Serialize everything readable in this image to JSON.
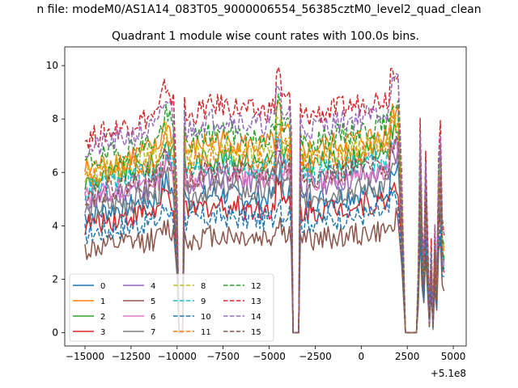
{
  "figure": {
    "suptitle": "n file: modeM0/AS1A14_083T05_9000006554_56385cztM0_level2_quad_clean",
    "title": "Quadrant 1 module wise count rates with 100.0s bins."
  },
  "chart_data": {
    "type": "line",
    "title": "Quadrant 1 module wise count rates with 100.0s bins.",
    "xlabel": "",
    "ylabel": "",
    "x_offset_label": "+5.1e8",
    "x_offset": 510000000,
    "xlim": [
      -16100,
      5700
    ],
    "ylim": [
      -0.5,
      10.7
    ],
    "xticks": [
      -15000,
      -12500,
      -10000,
      -7500,
      -5000,
      -2500,
      0,
      2500,
      5000
    ],
    "xtick_labels": [
      "−15000",
      "−12500",
      "−10000",
      "−7500",
      "−5000",
      "−2500",
      "0",
      "2500",
      "5000"
    ],
    "yticks": [
      0,
      2,
      4,
      6,
      8,
      10
    ],
    "ytick_labels": [
      "0",
      "2",
      "4",
      "6",
      "8",
      "10"
    ],
    "grid": false,
    "legend_placement": "lower-left",
    "legend_ncol": 4,
    "segments": [
      {
        "x": [
          -15000,
          -10200
        ],
        "shape": "rise-peak",
        "peak_x": -10600
      },
      {
        "x": [
          -10000,
          -9700
        ],
        "shape": "drop"
      },
      {
        "x": [
          -9500,
          -3900
        ],
        "shape": "rise"
      },
      {
        "x": [
          -3600,
          -3500
        ],
        "shape": "zero"
      },
      {
        "x": [
          -3200,
          2000
        ],
        "shape": "flat-rise"
      },
      {
        "x": [
          2400,
          3000
        ],
        "shape": "zero"
      },
      {
        "x": [
          3100,
          4500
        ],
        "shape": "spikes"
      }
    ],
    "series": [
      {
        "name": "0",
        "color": "#1f77b4",
        "dash": false,
        "level": 5.1
      },
      {
        "name": "1",
        "color": "#ff7f0e",
        "dash": false,
        "level": 7.1
      },
      {
        "name": "2",
        "color": "#2ca02c",
        "dash": false,
        "level": 6.5
      },
      {
        "name": "3",
        "color": "#d62728",
        "dash": false,
        "level": 4.7
      },
      {
        "name": "4",
        "color": "#9467bd",
        "dash": false,
        "level": 5.7
      },
      {
        "name": "5",
        "color": "#8c564b",
        "dash": false,
        "level": 3.6
      },
      {
        "name": "6",
        "color": "#e377c2",
        "dash": false,
        "level": 5.9
      },
      {
        "name": "7",
        "color": "#7f7f7f",
        "dash": false,
        "level": 5.3
      },
      {
        "name": "8",
        "color": "#bcbd22",
        "dash": true,
        "level": 6.8
      },
      {
        "name": "9",
        "color": "#17becf",
        "dash": true,
        "level": 6.2
      },
      {
        "name": "10",
        "color": "#1f77b4",
        "dash": true,
        "level": 4.3
      },
      {
        "name": "11",
        "color": "#ff7f0e",
        "dash": true,
        "level": 6.6
      },
      {
        "name": "12",
        "color": "#2ca02c",
        "dash": true,
        "level": 7.4
      },
      {
        "name": "13",
        "color": "#d62728",
        "dash": true,
        "level": 8.4
      },
      {
        "name": "14",
        "color": "#9467bd",
        "dash": true,
        "level": 7.9
      },
      {
        "name": "15",
        "color": "#8c564b",
        "dash": true,
        "level": 6.0
      }
    ]
  }
}
